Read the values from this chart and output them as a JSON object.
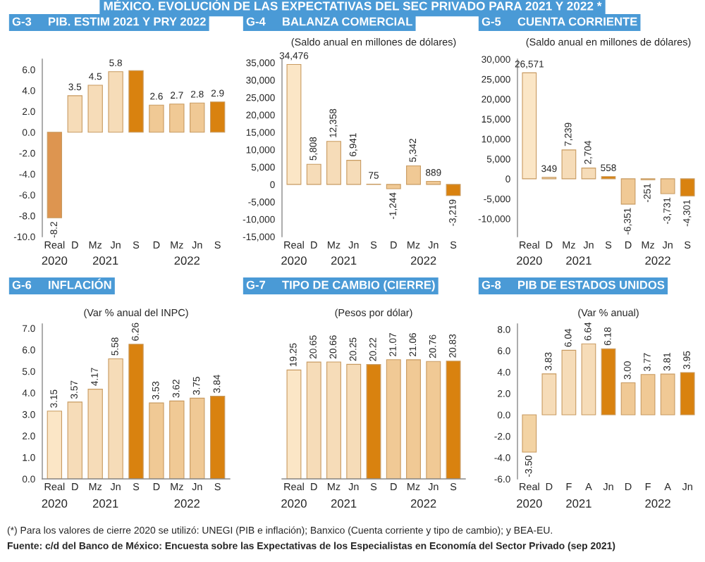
{
  "chart_data": [
    {
      "type": "bar",
      "title": "G-3     PIB. ESTIM 2021 Y PRY 2022",
      "annotations": [
        "MÉXICO. EVOLUCIÓN DE LAS EXPECTATIVAS DEL SEC PRIVADO PARA 2021 Y 2022 *",
        "2020",
        "2021",
        "2022"
      ],
      "categories": [
        "Real",
        "D",
        "Mz",
        "Jn",
        "S",
        "D",
        "Mz",
        "Jn",
        "S"
      ],
      "values": [
        -8.2,
        3.5,
        4.5,
        5.8,
        5.9,
        2.6,
        2.7,
        2.8,
        2.9
      ],
      "value_labels": [
        "-8.2",
        "3.5",
        "4.5",
        "5.8",
        null,
        "2.6",
        "2.7",
        "2.8",
        "2.9"
      ],
      "colors": [
        "#dd9550",
        "#f6dcb8",
        "#f6dcb8",
        "#f6dcb8",
        "#d9820f",
        "#f0c995",
        "#f0c995",
        "#f0c995",
        "#d9820f"
      ],
      "ylim": [
        -10,
        7
      ],
      "yticks": [
        {
          "value": -10,
          "label": "-10.0"
        },
        {
          "value": -8,
          "label": "-8.0"
        },
        {
          "value": -6,
          "label": "-6.0"
        },
        {
          "value": -4,
          "label": "-4.0"
        },
        {
          "value": -2,
          "label": "-2.0"
        },
        {
          "value": 0,
          "label": "0.0"
        },
        {
          "value": 2,
          "label": "2.0"
        },
        {
          "value": 4,
          "label": "4.0"
        },
        {
          "value": 6,
          "label": "6.0"
        }
      ],
      "grid": false,
      "legend": false
    },
    {
      "type": "bar",
      "title": "G-4     BALANZA COMERCIAL",
      "subtitle": "(Saldo anual en millones de dólares)",
      "annotations": [
        "2020",
        "2021",
        "2022"
      ],
      "categories": [
        "Real",
        "D",
        "Mz",
        "Jn",
        "S",
        "D",
        "Mz",
        "Jn",
        "S"
      ],
      "values": [
        34476,
        5808,
        12358,
        6941,
        75,
        -1244,
        5342,
        889,
        -3219
      ],
      "value_labels": [
        "34,476",
        "5,808",
        "12,358",
        "6,941",
        "75",
        "-1,244",
        "5,342",
        "889",
        "-3,219"
      ],
      "colors": [
        "#fbe6c6",
        "#f6dcb8",
        "#f6dcb8",
        "#f6dcb8",
        "#d9820f",
        "#f0c995",
        "#f0c995",
        "#f0c995",
        "#d9820f"
      ],
      "ylim": [
        -15000,
        36000
      ],
      "yticks": [
        {
          "value": -15000,
          "label": "-15,000"
        },
        {
          "value": -10000,
          "label": "-10,000"
        },
        {
          "value": -5000,
          "label": "-5,000"
        },
        0,
        {
          "value": 5000,
          "label": "5,000"
        },
        {
          "value": 10000,
          "label": "10,000"
        },
        {
          "value": 15000,
          "label": "15,000"
        },
        {
          "value": 20000,
          "label": "20,000"
        },
        {
          "value": 25000,
          "label": "25,000"
        },
        {
          "value": 30000,
          "label": "30,000"
        },
        {
          "value": 35000,
          "label": "35,000"
        }
      ],
      "grid": false,
      "legend": false
    },
    {
      "type": "bar",
      "title": "G-5     CUENTA CORRIENTE",
      "subtitle": "(Saldo anual en millones de dólares)",
      "annotations": [
        "2020",
        "2021",
        "2022"
      ],
      "categories": [
        "Real",
        "D",
        "Mz",
        "Jn",
        "S",
        "D",
        "Mz",
        "Jn",
        "S"
      ],
      "values": [
        26571,
        349,
        7239,
        2704,
        558,
        -6351,
        -251,
        -3731,
        -4301
      ],
      "value_labels": [
        "26,571",
        "349",
        "7,239",
        "2,704",
        "558",
        "-6,351",
        "-251",
        "-3,731",
        "-4,301"
      ],
      "colors": [
        "#fbe6c6",
        "#f6dcb8",
        "#f6dcb8",
        "#f6dcb8",
        "#d9820f",
        "#f0c995",
        "#f0c995",
        "#f0c995",
        "#d9820f"
      ],
      "ylim": [
        -14500,
        30000
      ],
      "yticks": [
        {
          "value": -10000,
          "label": "-10,000"
        },
        {
          "value": -5000,
          "label": "-5,000"
        },
        0,
        {
          "value": 5000,
          "label": "5,000"
        },
        {
          "value": 10000,
          "label": "10,000"
        },
        {
          "value": 15000,
          "label": "15,000"
        },
        {
          "value": 20000,
          "label": "20,000"
        },
        {
          "value": 25000,
          "label": "25,000"
        },
        {
          "value": 30000,
          "label": "30,000"
        }
      ],
      "grid": false,
      "legend": false
    },
    {
      "type": "bar",
      "title": "G-6     INFLACIÓN",
      "subtitle": "(Var % anual del INPC)",
      "annotations": [
        "2020",
        "2021",
        "2022"
      ],
      "categories": [
        "Real",
        "D",
        "Mz",
        "Jn",
        "S",
        "D",
        "Mz",
        "Jn",
        "S"
      ],
      "values": [
        3.15,
        3.57,
        4.17,
        5.58,
        6.26,
        3.53,
        3.62,
        3.75,
        3.84
      ],
      "value_labels": [
        "3.15",
        "3.57",
        "4.17",
        "5.58",
        "6.26",
        "3.53",
        "3.62",
        "3.75",
        "3.84"
      ],
      "colors": [
        "#fbe6c6",
        "#f6dcb8",
        "#f6dcb8",
        "#f6dcb8",
        "#d9820f",
        "#f0c995",
        "#f0c995",
        "#f0c995",
        "#d9820f"
      ],
      "ylim": [
        0,
        7.2
      ],
      "yticks": [
        {
          "value": 0,
          "label": "0.0"
        },
        {
          "value": 1,
          "label": "1.0"
        },
        {
          "value": 2,
          "label": "2.0"
        },
        {
          "value": 3,
          "label": "3.0"
        },
        {
          "value": 4,
          "label": "4.0"
        },
        {
          "value": 5,
          "label": "5.0"
        },
        {
          "value": 6,
          "label": "6.0"
        },
        {
          "value": 7,
          "label": "7.0"
        }
      ],
      "grid": false,
      "legend": false
    },
    {
      "type": "bar",
      "title": "G-7     TIPO DE CAMBIO (CIERRE)",
      "subtitle": "(Pesos por dólar)",
      "annotations": [
        "2020",
        "2021",
        "2022"
      ],
      "categories": [
        "Real",
        "D",
        "Mz",
        "Jn",
        "S",
        "D",
        "Mz",
        "Jn",
        "S"
      ],
      "values": [
        19.25,
        20.65,
        20.66,
        20.25,
        20.22,
        21.07,
        21.06,
        20.76,
        20.83
      ],
      "value_labels": [
        "19.25",
        "20.65",
        "20.66",
        "20.25",
        "20.22",
        "21.07",
        "21.06",
        "20.76",
        "20.83"
      ],
      "colors": [
        "#fbe6c6",
        "#f6dcb8",
        "#f6dcb8",
        "#f6dcb8",
        "#d9820f",
        "#f0c995",
        "#f0c995",
        "#f0c995",
        "#d9820f"
      ],
      "tick_labels": "x",
      "grid": false,
      "legend": false
    },
    {
      "type": "bar",
      "title": "G-8     PIB DE ESTADOS UNIDOS",
      "subtitle": "(Var % anual)",
      "annotations": [
        "2020",
        "2021",
        "2022",
        "(*) Para los valores de cierre 2020 se utilizó: UNEGI (PIB e inflación); Banxico (Cuenta corriente y tipo de cambio); y BEA-EU.",
        "Fuente: c/d del Banco de México: Encuesta sobre las Expectativas de los Especialistas en Economía del Sector Privado (sep 2021)"
      ],
      "categories": [
        "Real",
        "D",
        "F",
        "A",
        "Jn",
        "D",
        "F",
        "A",
        "Jn"
      ],
      "values": [
        -3.5,
        3.83,
        6.04,
        6.64,
        6.18,
        3.0,
        3.77,
        3.81,
        3.95
      ],
      "value_labels": [
        "-3.50",
        "3.83",
        "6.04",
        "6.64",
        "6.18",
        "3.00",
        "3.77",
        "3.81",
        "3.95"
      ],
      "colors": [
        "#f3d3a3",
        "#f6dcb8",
        "#f6dcb8",
        "#f6dcb8",
        "#d9820f",
        "#f0c995",
        "#f0c995",
        "#f0c995",
        "#d9820f"
      ],
      "ylim": [
        -6,
        8.5
      ],
      "yticks": [
        {
          "value": -6,
          "label": "-6.0"
        },
        {
          "value": -4,
          "label": "-4.0"
        },
        {
          "value": -2,
          "label": "-2.0"
        },
        {
          "value": 0,
          "label": "0.0"
        },
        {
          "value": 2,
          "label": "2.0"
        },
        {
          "value": 4,
          "label": "4.0"
        },
        {
          "value": 6,
          "label": "6.0"
        },
        {
          "value": 8,
          "label": "8.0"
        }
      ],
      "grid": false,
      "legend": false
    }
  ]
}
